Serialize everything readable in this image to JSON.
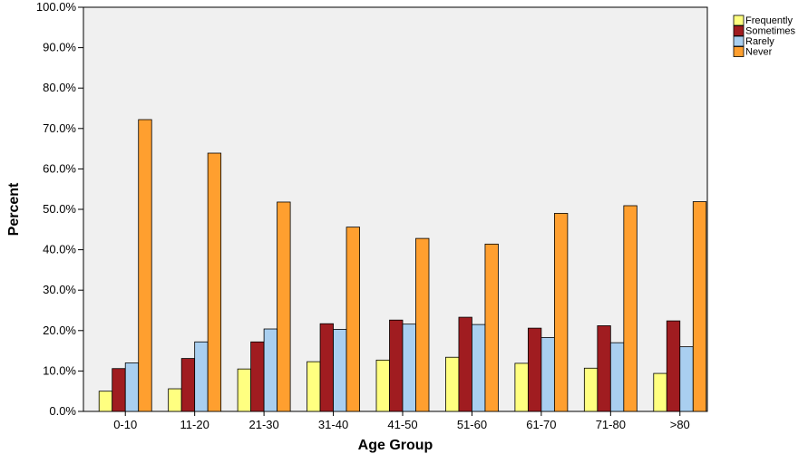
{
  "chart_data": {
    "type": "bar",
    "title": "",
    "xlabel": "Age Group",
    "ylabel": "Percent",
    "ylim": [
      0,
      100
    ],
    "y_ticks": [
      "0.0%",
      "10.0%",
      "20.0%",
      "30.0%",
      "40.0%",
      "50.0%",
      "60.0%",
      "70.0%",
      "80.0%",
      "90.0%",
      "100.0%"
    ],
    "categories": [
      "0-10",
      "11-20",
      "21-30",
      "31-40",
      "41-50",
      "51-60",
      "61-70",
      "71-80",
      ">80"
    ],
    "series": [
      {
        "name": "Frequently",
        "color": "#ffff80",
        "values": [
          5.0,
          5.6,
          10.5,
          12.3,
          12.7,
          13.4,
          11.9,
          10.7,
          9.4
        ]
      },
      {
        "name": "Sometimes",
        "color": "#a01c20",
        "values": [
          10.6,
          13.1,
          17.2,
          21.7,
          22.6,
          23.3,
          20.6,
          21.2,
          22.4
        ]
      },
      {
        "name": "Rarely",
        "color": "#a9cff0",
        "values": [
          12.0,
          17.2,
          20.4,
          20.3,
          21.6,
          21.5,
          18.3,
          17.0,
          16.0
        ]
      },
      {
        "name": "Never",
        "color": "#ff9f2f",
        "values": [
          72.2,
          63.9,
          51.8,
          45.6,
          42.8,
          41.4,
          49.0,
          50.9,
          51.9
        ]
      }
    ],
    "grid": false,
    "legend_position": "top-right",
    "plot_background": "#f0f0f0"
  }
}
